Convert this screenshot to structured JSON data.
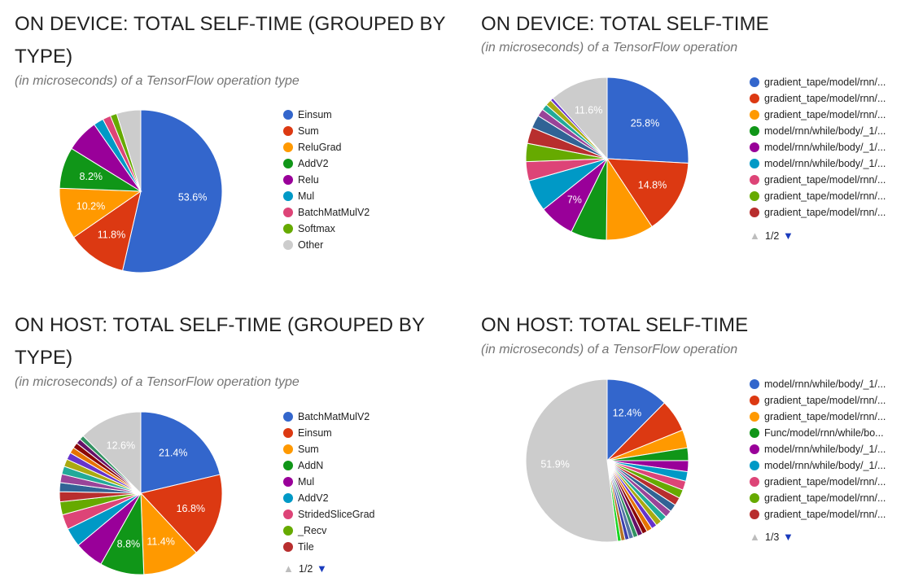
{
  "charts": [
    {
      "id": "device-type",
      "title": "ON DEVICE: TOTAL SELF-TIME (GROUPED BY TYPE)",
      "subtitle": "(in microseconds) of a TensorFlow operation type",
      "pager": null
    },
    {
      "id": "device-op",
      "title": "ON DEVICE: TOTAL SELF-TIME",
      "subtitle": "(in microseconds) of a TensorFlow operation",
      "pager": {
        "up": "▲",
        "page": "1/2",
        "down": "▼"
      }
    },
    {
      "id": "host-type",
      "title": "ON HOST: TOTAL SELF-TIME (GROUPED BY TYPE)",
      "subtitle": "(in microseconds) of a TensorFlow operation type",
      "pager": {
        "up": "▲",
        "page": "1/2",
        "down": "▼"
      }
    },
    {
      "id": "host-op",
      "title": "ON HOST: TOTAL SELF-TIME",
      "subtitle": "(in microseconds) of a TensorFlow operation",
      "pager": {
        "up": "▲",
        "page": "1/3",
        "down": "▼"
      }
    }
  ],
  "chart_data": [
    {
      "type": "pie",
      "title": "ON DEVICE: TOTAL SELF-TIME (GROUPED BY TYPE)",
      "legend_position": "right",
      "slices": [
        {
          "label": "Einsum",
          "value": 53.6,
          "color": "#3366cc",
          "show_pct": true
        },
        {
          "label": "Sum",
          "value": 11.8,
          "color": "#dc3912",
          "show_pct": true
        },
        {
          "label": "ReluGrad",
          "value": 10.2,
          "color": "#ff9900",
          "show_pct": true
        },
        {
          "label": "AddV2",
          "value": 8.2,
          "color": "#109618",
          "show_pct": true
        },
        {
          "label": "Relu",
          "value": 6.5,
          "color": "#990099",
          "show_pct": false
        },
        {
          "label": "Mul",
          "value": 2.0,
          "color": "#0099c6",
          "show_pct": false
        },
        {
          "label": "BatchMatMulV2",
          "value": 1.6,
          "color": "#dd4477",
          "show_pct": false
        },
        {
          "label": "Softmax",
          "value": 1.3,
          "color": "#66aa00",
          "show_pct": false
        },
        {
          "label": "Other",
          "value": 4.8,
          "color": "#cccccc",
          "show_pct": false
        }
      ]
    },
    {
      "type": "pie",
      "title": "ON DEVICE: TOTAL SELF-TIME",
      "legend_position": "right",
      "slices": [
        {
          "label": "gradient_tape/model/rnn/...",
          "value": 25.8,
          "color": "#3366cc",
          "show_pct": true
        },
        {
          "label": "gradient_tape/model/rnn/...",
          "value": 14.8,
          "color": "#dc3912",
          "show_pct": true
        },
        {
          "label": "gradient_tape/model/rnn/...",
          "value": 9.4,
          "color": "#ff9900",
          "show_pct": false
        },
        {
          "label": "model/rnn/while/body/_1/...",
          "value": 7.1,
          "color": "#109618",
          "show_pct": false
        },
        {
          "label": "model/rnn/while/body/_1/...",
          "value": 7.0,
          "color": "#990099",
          "show_pct": true
        },
        {
          "label": "model/rnn/while/body/_1/...",
          "value": 6.3,
          "color": "#0099c6",
          "show_pct": false
        },
        {
          "label": "gradient_tape/model/rnn/...",
          "value": 3.8,
          "color": "#dd4477",
          "show_pct": false
        },
        {
          "label": "gradient_tape/model/rnn/...",
          "value": 3.6,
          "color": "#66aa00",
          "show_pct": false
        },
        {
          "label": "gradient_tape/model/rnn/...",
          "value": 3.2,
          "color": "#b82e2e",
          "show_pct": false
        },
        {
          "label": "",
          "value": 2.6,
          "color": "#316395",
          "show_pct": false
        },
        {
          "label": "",
          "value": 1.5,
          "color": "#994499",
          "show_pct": false
        },
        {
          "label": "",
          "value": 1.2,
          "color": "#22aa99",
          "show_pct": false
        },
        {
          "label": "",
          "value": 1.2,
          "color": "#aaaa11",
          "show_pct": false
        },
        {
          "label": "",
          "value": 0.6,
          "color": "#6633cc",
          "show_pct": false
        },
        {
          "label": "",
          "value": 11.6,
          "color": "#cccccc",
          "show_pct": true
        }
      ]
    },
    {
      "type": "pie",
      "title": "ON HOST: TOTAL SELF-TIME (GROUPED BY TYPE)",
      "legend_position": "right",
      "slices": [
        {
          "label": "BatchMatMulV2",
          "value": 21.4,
          "color": "#3366cc",
          "show_pct": true
        },
        {
          "label": "Einsum",
          "value": 16.8,
          "color": "#dc3912",
          "show_pct": true
        },
        {
          "label": "Sum",
          "value": 11.4,
          "color": "#ff9900",
          "show_pct": true
        },
        {
          "label": "AddN",
          "value": 8.8,
          "color": "#109618",
          "show_pct": true
        },
        {
          "label": "Mul",
          "value": 5.8,
          "color": "#990099",
          "show_pct": false
        },
        {
          "label": "AddV2",
          "value": 3.8,
          "color": "#0099c6",
          "show_pct": false
        },
        {
          "label": "StridedSliceGrad",
          "value": 3.0,
          "color": "#dd4477",
          "show_pct": false
        },
        {
          "label": "_Recv",
          "value": 2.6,
          "color": "#66aa00",
          "show_pct": false
        },
        {
          "label": "Tile",
          "value": 2.0,
          "color": "#b82e2e",
          "show_pct": false
        },
        {
          "label": "",
          "value": 1.8,
          "color": "#316395",
          "show_pct": false
        },
        {
          "label": "",
          "value": 1.7,
          "color": "#994499",
          "show_pct": false
        },
        {
          "label": "",
          "value": 1.6,
          "color": "#22aa99",
          "show_pct": false
        },
        {
          "label": "",
          "value": 1.5,
          "color": "#aaaa11",
          "show_pct": false
        },
        {
          "label": "",
          "value": 1.4,
          "color": "#6633cc",
          "show_pct": false
        },
        {
          "label": "",
          "value": 1.2,
          "color": "#e67300",
          "show_pct": false
        },
        {
          "label": "",
          "value": 1.1,
          "color": "#8b0707",
          "show_pct": false
        },
        {
          "label": "",
          "value": 1.0,
          "color": "#651067",
          "show_pct": false
        },
        {
          "label": "",
          "value": 0.9,
          "color": "#329262",
          "show_pct": false
        },
        {
          "label": "",
          "value": 12.6,
          "color": "#cccccc",
          "show_pct": true
        }
      ]
    },
    {
      "type": "pie",
      "title": "ON HOST: TOTAL SELF-TIME",
      "legend_position": "right",
      "slices": [
        {
          "label": "model/rnn/while/body/_1/...",
          "value": 12.4,
          "color": "#3366cc",
          "show_pct": true
        },
        {
          "label": "gradient_tape/model/rnn/...",
          "value": 6.4,
          "color": "#dc3912",
          "show_pct": false
        },
        {
          "label": "gradient_tape/model/rnn/...",
          "value": 3.6,
          "color": "#ff9900",
          "show_pct": false
        },
        {
          "label": "Func/model/rnn/while/bo...",
          "value": 2.5,
          "color": "#109618",
          "show_pct": false
        },
        {
          "label": "model/rnn/while/body/_1/...",
          "value": 2.2,
          "color": "#990099",
          "show_pct": false
        },
        {
          "label": "model/rnn/while/body/_1/...",
          "value": 1.9,
          "color": "#0099c6",
          "show_pct": false
        },
        {
          "label": "gradient_tape/model/rnn/...",
          "value": 1.8,
          "color": "#dd4477",
          "show_pct": false
        },
        {
          "label": "gradient_tape/model/rnn/...",
          "value": 1.7,
          "color": "#66aa00",
          "show_pct": false
        },
        {
          "label": "gradient_tape/model/rnn/...",
          "value": 1.6,
          "color": "#b82e2e",
          "show_pct": false
        },
        {
          "label": "",
          "value": 1.5,
          "color": "#316395",
          "show_pct": false
        },
        {
          "label": "",
          "value": 1.4,
          "color": "#994499",
          "show_pct": false
        },
        {
          "label": "",
          "value": 1.3,
          "color": "#22aa99",
          "show_pct": false
        },
        {
          "label": "",
          "value": 1.2,
          "color": "#aaaa11",
          "show_pct": false
        },
        {
          "label": "",
          "value": 1.1,
          "color": "#6633cc",
          "show_pct": false
        },
        {
          "label": "",
          "value": 1.1,
          "color": "#e67300",
          "show_pct": false
        },
        {
          "label": "",
          "value": 1.0,
          "color": "#8b0707",
          "show_pct": false
        },
        {
          "label": "",
          "value": 1.0,
          "color": "#651067",
          "show_pct": false
        },
        {
          "label": "",
          "value": 0.9,
          "color": "#329262",
          "show_pct": false
        },
        {
          "label": "",
          "value": 0.9,
          "color": "#5574a6",
          "show_pct": false
        },
        {
          "label": "",
          "value": 0.8,
          "color": "#3b3eac",
          "show_pct": false
        },
        {
          "label": "",
          "value": 0.8,
          "color": "#b77322",
          "show_pct": false
        },
        {
          "label": "",
          "value": 0.7,
          "color": "#16d620",
          "show_pct": false
        },
        {
          "label": "",
          "value": 51.9,
          "color": "#cccccc",
          "show_pct": true
        }
      ]
    }
  ]
}
